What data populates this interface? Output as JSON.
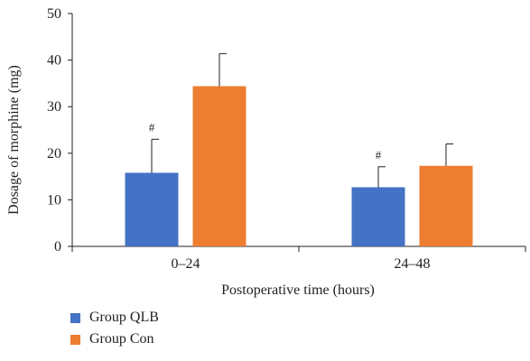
{
  "chart_data": {
    "type": "bar",
    "categories": [
      "0–24",
      "24–48"
    ],
    "xlabel": "Postoperative time (hours)",
    "ylabel": "Dosage of morphine (mg)",
    "ylim": [
      0,
      50
    ],
    "yticks": [
      "0",
      "10",
      "20",
      "30",
      "40",
      "50"
    ],
    "grid": false,
    "legend_position": "bottom-left",
    "series": [
      {
        "name": "Group QLB",
        "color": "#4472c4",
        "values": [
          15.8,
          12.7
        ],
        "errors": [
          7.2,
          4.4
        ],
        "annotations": [
          "#",
          "#"
        ]
      },
      {
        "name": "Group Con",
        "color": "#ed7d31",
        "values": [
          34.4,
          17.3
        ],
        "errors": [
          7.0,
          4.7
        ],
        "annotations": [
          "",
          ""
        ]
      }
    ]
  }
}
